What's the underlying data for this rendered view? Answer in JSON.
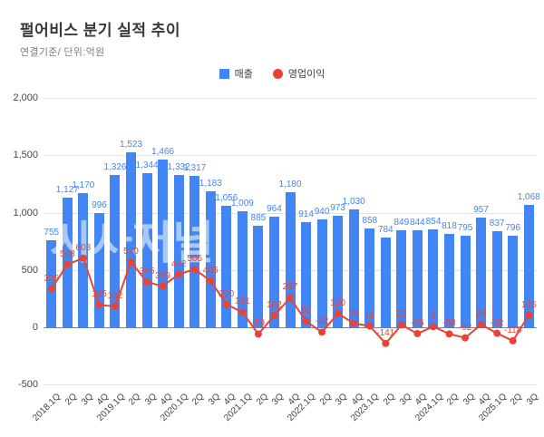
{
  "title": "펄어비스 분기 실적 추이",
  "subtitle": "연결기준/ 단위:억원",
  "watermark": "시사저널",
  "legend": {
    "revenue_label": "매출",
    "profit_label": "영업이익"
  },
  "colors": {
    "revenue": "#4285F4",
    "profit": "#EA4335",
    "gridline": "#e3e3e3",
    "zero_line": "#7f7f7f"
  },
  "chart_data": {
    "type": "bar",
    "subtype": "combo-bar-line",
    "title": "펄어비스 분기 실적 추이",
    "unit": "억원",
    "grid": true,
    "legend_position": "top",
    "value_labels": true,
    "ylim": [
      -500,
      2000
    ],
    "yticks": [
      2000,
      1500,
      1000,
      500,
      0,
      -500
    ],
    "categories": [
      "2018.1Q",
      "2Q",
      "3Q",
      "4Q",
      "2019.1Q",
      "2Q",
      "3Q",
      "4Q",
      "2020.1Q",
      "2Q",
      "3Q",
      "4Q",
      "2021.1Q",
      "2Q",
      "3Q",
      "4Q",
      "2022.1Q",
      "2Q",
      "3Q",
      "4Q",
      "2023.1Q",
      "2Q",
      "3Q",
      "4Q",
      "2024.1Q",
      "2Q",
      "3Q",
      "4Q",
      "2025.1Q",
      "2Q",
      "3Q"
    ],
    "series": [
      {
        "name": "매출",
        "type": "bar",
        "color": "#4285F4",
        "values": [
          755,
          1127,
          1170,
          996,
          1326,
          1523,
          1344,
          1466,
          1332,
          1317,
          1183,
          1056,
          1009,
          885,
          964,
          1180,
          914,
          940,
          973,
          1030,
          858,
          784,
          849,
          844,
          854,
          818,
          795,
          957,
          837,
          796,
          1068
        ]
      },
      {
        "name": "영업이익",
        "type": "line",
        "color": "#EA4335",
        "values": [
          335,
          548,
          603,
          195,
          182,
          570,
          395,
          359,
          462,
          506,
          405,
          200,
          131,
          -59,
          102,
          257,
          52,
          -42,
          120,
          35,
          11,
          -141,
          21,
          -55,
          6,
          -58,
          -92,
          24,
          -52,
          -118,
          106
        ]
      }
    ]
  }
}
